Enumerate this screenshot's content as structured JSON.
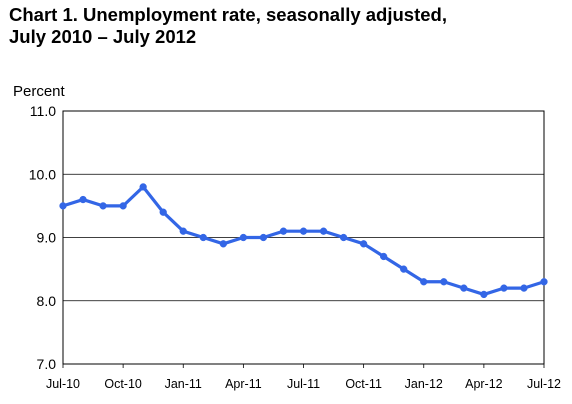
{
  "title_line1": "Chart 1. Unemployment rate, seasonally adjusted,",
  "title_line2": "July 2010 – July 2012",
  "chart_data": {
    "type": "line",
    "ylabel": "Percent",
    "xlabel": "",
    "ylim": [
      7.0,
      11.0
    ],
    "yticks": [
      "7.0",
      "8.0",
      "9.0",
      "10.0",
      "11.0"
    ],
    "grid": "horizontal",
    "x": [
      "Jul-10",
      "Aug-10",
      "Sep-10",
      "Oct-10",
      "Nov-10",
      "Dec-10",
      "Jan-11",
      "Feb-11",
      "Mar-11",
      "Apr-11",
      "May-11",
      "Jun-11",
      "Jul-11",
      "Aug-11",
      "Sep-11",
      "Oct-11",
      "Nov-11",
      "Dec-11",
      "Jan-12",
      "Feb-12",
      "Mar-12",
      "Apr-12",
      "May-12",
      "Jun-12",
      "Jul-12"
    ],
    "xtick_labels": [
      "Jul-10",
      "Oct-10",
      "Jan-11",
      "Apr-11",
      "Jul-11",
      "Oct-11",
      "Jan-12",
      "Apr-12",
      "Jul-12"
    ],
    "series": [
      {
        "values": [
          9.5,
          9.6,
          9.5,
          9.5,
          9.8,
          9.4,
          9.1,
          9.0,
          8.9,
          9.0,
          9.0,
          9.1,
          9.1,
          9.1,
          9.0,
          8.9,
          8.7,
          8.5,
          8.3,
          8.3,
          8.2,
          8.1,
          8.2,
          8.2,
          8.3
        ]
      }
    ],
    "line_color": "#3366e6"
  }
}
